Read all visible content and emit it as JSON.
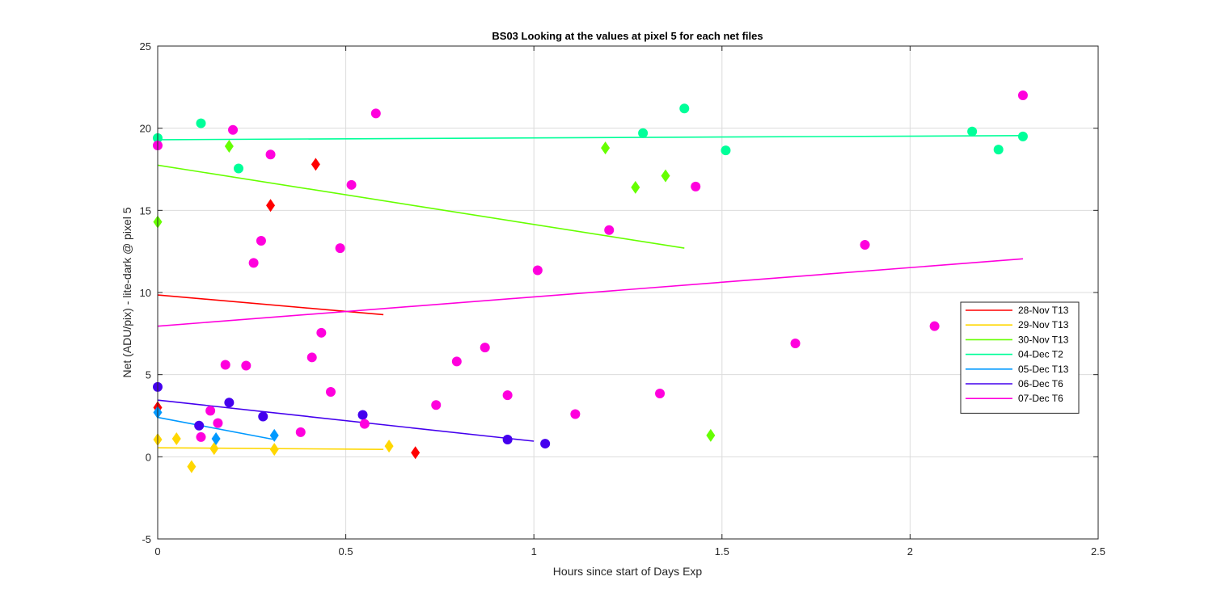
{
  "chart_data": {
    "type": "scatter",
    "title": "BS03  Looking at the values at pixel 5 for each net files",
    "xlabel": "Hours since start of Days Exp",
    "ylabel": "Net (ADU/pix) - lite-dark @ pixel 5",
    "xlim": [
      0,
      2.5
    ],
    "ylim": [
      -5,
      25
    ],
    "xticks": [
      0,
      0.5,
      1,
      1.5,
      2,
      2.5
    ],
    "xtick_labels": [
      "0",
      "0.5",
      "1",
      "1.5",
      "2",
      "2.5"
    ],
    "yticks": [
      -5,
      0,
      5,
      10,
      15,
      20,
      25
    ],
    "ytick_labels": [
      "-5",
      "0",
      "5",
      "10",
      "15",
      "20",
      "25"
    ],
    "grid": true,
    "legend_position": "right",
    "series": [
      {
        "name": "28-Nov T13",
        "color": "#ff0000",
        "marker": "diamond",
        "points": [
          [
            0.0,
            3.0
          ],
          [
            0.3,
            15.3
          ],
          [
            0.42,
            17.8
          ],
          [
            0.685,
            0.25
          ]
        ],
        "fit": [
          [
            0.0,
            9.85
          ],
          [
            0.6,
            8.65
          ]
        ]
      },
      {
        "name": "29-Nov T13",
        "color": "#ffd700",
        "marker": "diamond",
        "points": [
          [
            0.0,
            1.05
          ],
          [
            0.05,
            1.1
          ],
          [
            0.09,
            -0.6
          ],
          [
            0.15,
            0.5
          ],
          [
            0.31,
            0.45
          ],
          [
            0.615,
            0.65
          ]
        ],
        "fit": [
          [
            0.0,
            0.55
          ],
          [
            0.6,
            0.45
          ]
        ]
      },
      {
        "name": "30-Nov T13",
        "color": "#66ff00",
        "marker": "diamond",
        "points": [
          [
            0.0,
            14.3
          ],
          [
            0.19,
            18.9
          ],
          [
            1.19,
            18.8
          ],
          [
            1.27,
            16.4
          ],
          [
            1.35,
            17.1
          ],
          [
            1.47,
            1.3
          ]
        ],
        "fit": [
          [
            0.0,
            17.75
          ],
          [
            1.4,
            12.7
          ]
        ]
      },
      {
        "name": "04-Dec T2",
        "color": "#00ff99",
        "marker": "circle",
        "points": [
          [
            0.0,
            19.4
          ],
          [
            0.115,
            20.3
          ],
          [
            0.215,
            17.55
          ],
          [
            1.29,
            19.7
          ],
          [
            1.4,
            21.2
          ],
          [
            1.51,
            18.65
          ],
          [
            2.165,
            19.8
          ],
          [
            2.235,
            18.7
          ],
          [
            2.3,
            19.5
          ]
        ],
        "fit": [
          [
            0.0,
            19.3
          ],
          [
            2.3,
            19.55
          ]
        ]
      },
      {
        "name": "05-Dec T13",
        "color": "#0099ff",
        "marker": "diamond",
        "points": [
          [
            0.0,
            2.7
          ],
          [
            0.155,
            1.1
          ],
          [
            0.31,
            1.3
          ]
        ],
        "fit": [
          [
            0.0,
            2.4
          ],
          [
            0.31,
            1.05
          ]
        ]
      },
      {
        "name": "06-Dec T6",
        "color": "#4400ee",
        "marker": "circle",
        "points": [
          [
            0.0,
            4.25
          ],
          [
            0.11,
            1.9
          ],
          [
            0.19,
            3.3
          ],
          [
            0.28,
            2.45
          ],
          [
            0.545,
            2.55
          ],
          [
            0.93,
            1.05
          ],
          [
            1.03,
            0.8
          ]
        ],
        "fit": [
          [
            0.0,
            3.45
          ],
          [
            1.0,
            0.95
          ]
        ]
      },
      {
        "name": "07-Dec T6",
        "color": "#ff00dd",
        "marker": "circle",
        "points": [
          [
            0.0,
            18.95
          ],
          [
            0.115,
            1.2
          ],
          [
            0.14,
            2.8
          ],
          [
            0.16,
            2.05
          ],
          [
            0.18,
            5.6
          ],
          [
            0.2,
            19.9
          ],
          [
            0.235,
            5.55
          ],
          [
            0.255,
            11.8
          ],
          [
            0.275,
            13.15
          ],
          [
            0.3,
            18.4
          ],
          [
            0.38,
            1.5
          ],
          [
            0.41,
            6.05
          ],
          [
            0.435,
            7.55
          ],
          [
            0.46,
            3.95
          ],
          [
            0.485,
            12.7
          ],
          [
            0.515,
            16.55
          ],
          [
            0.55,
            2.0
          ],
          [
            0.58,
            20.9
          ],
          [
            0.74,
            3.15
          ],
          [
            0.795,
            5.8
          ],
          [
            0.87,
            6.65
          ],
          [
            0.93,
            3.75
          ],
          [
            1.01,
            11.35
          ],
          [
            1.11,
            2.6
          ],
          [
            1.2,
            13.8
          ],
          [
            1.335,
            3.85
          ],
          [
            1.43,
            16.45
          ],
          [
            1.695,
            6.9
          ],
          [
            1.88,
            12.9
          ],
          [
            2.065,
            7.95
          ],
          [
            2.3,
            22.0
          ]
        ],
        "fit": [
          [
            0.0,
            7.95
          ],
          [
            2.3,
            12.05
          ]
        ]
      }
    ]
  }
}
